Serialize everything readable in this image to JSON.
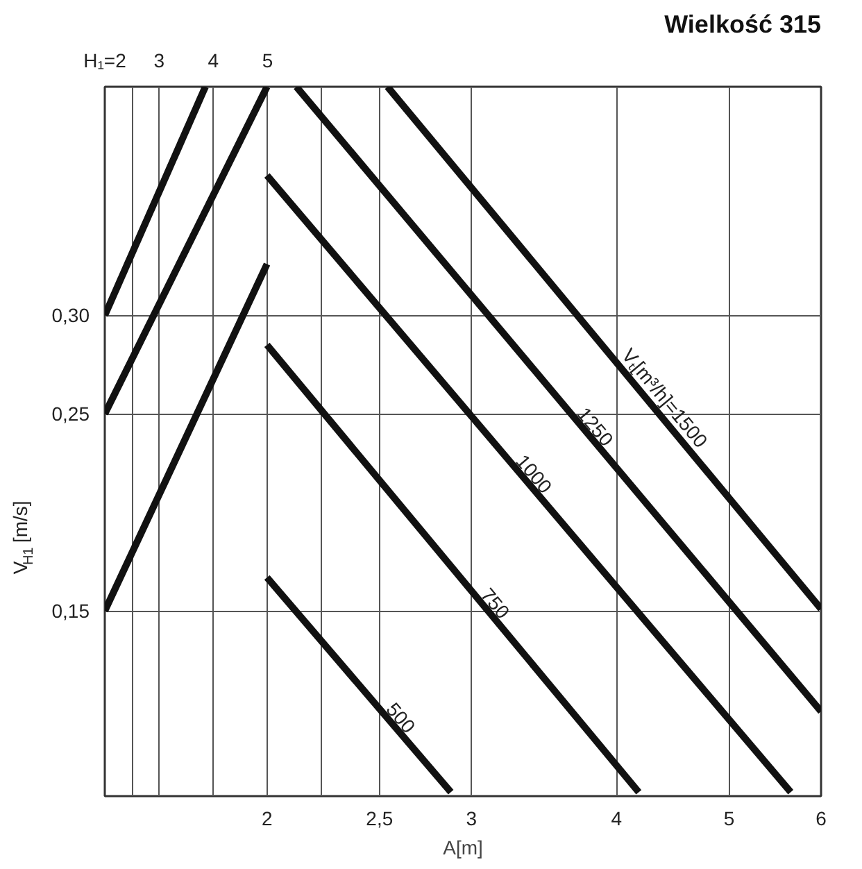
{
  "chart_data": {
    "type": "line",
    "title": "Wielkość 315",
    "xlabel": "A[m]",
    "ylabel": "V$_{H1}$ [m/s]",
    "log": "x",
    "grid": true,
    "legend": false,
    "marker": "none",
    "line_style": "solid",
    "xlim": [
      1.45,
      6.0
    ],
    "ylim": [
      0.056,
      0.416
    ],
    "xticks": [
      {
        "value": 2,
        "label": "2"
      },
      {
        "value": 2.5,
        "label": "2,5"
      },
      {
        "value": 3,
        "label": "3"
      },
      {
        "value": 4,
        "label": "4"
      },
      {
        "value": 5,
        "label": "5"
      },
      {
        "value": 6,
        "label": "6"
      }
    ],
    "x2lim": [
      2,
      15.2
    ],
    "x2ticks": [
      {
        "value": 2,
        "label": "H₁=2"
      },
      3,
      4,
      5
    ],
    "yticks": [
      {
        "value": 0.15,
        "label": "0,15"
      },
      {
        "value": 0.25,
        "label": "0,25"
      },
      {
        "value": 0.3,
        "label": "0,30"
      }
    ],
    "series": [
      {
        "color": "#111111",
        "x": [
          1.45,
          1.77
        ],
        "values": [
          0.3,
          0.416
        ]
      },
      {
        "color": "#111111",
        "x": [
          1.45,
          2.0
        ],
        "values": [
          0.25,
          0.416
        ]
      },
      {
        "color": "#111111",
        "x": [
          1.45,
          2.0
        ],
        "values": [
          0.15,
          0.326
        ]
      },
      {
        "name": "500",
        "color": "#111111",
        "x": [
          2.0,
          2.88
        ],
        "values": [
          0.167,
          0.058
        ]
      },
      {
        "name": "750",
        "color": "#111111",
        "x": [
          2.0,
          4.18
        ],
        "values": [
          0.285,
          0.058
        ]
      },
      {
        "name": "1000",
        "color": "#111111",
        "x": [
          2.0,
          5.65
        ],
        "values": [
          0.371,
          0.058
        ]
      },
      {
        "name": "1250",
        "color": "#111111",
        "x": [
          2.12,
          6.0
        ],
        "values": [
          0.416,
          0.099
        ]
      },
      {
        "name": "Vₜ[m³/h]=1500",
        "color": "#111111",
        "x": [
          2.54,
          6.0
        ],
        "values": [
          0.416,
          0.151
        ]
      }
    ]
  }
}
